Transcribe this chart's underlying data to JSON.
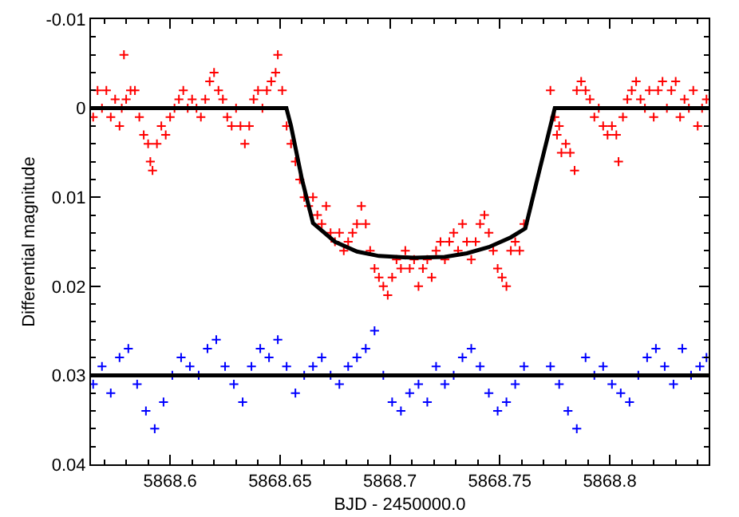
{
  "chart_data": {
    "type": "scatter",
    "xlabel": "BJD - 2450000.0",
    "ylabel": "Differential magnitude",
    "xlim": [
      5868.564,
      5868.845
    ],
    "ylim": [
      0.04,
      -0.01
    ],
    "xticks": [
      5868.6,
      5868.65,
      5868.7,
      5868.75,
      5868.8
    ],
    "yticks": [
      -0.01,
      0,
      0.01,
      0.02,
      0.03,
      0.04
    ],
    "marker": "cross",
    "line_style": "solid",
    "series": [
      {
        "color": "#ff0000",
        "x": [
          5868.565,
          5868.567,
          5868.569,
          5868.571,
          5868.573,
          5868.575,
          5868.577,
          5868.578,
          5868.579,
          5868.58,
          5868.582,
          5868.584,
          5868.586,
          5868.588,
          5868.59,
          5868.591,
          5868.592,
          5868.594,
          5868.596,
          5868.598,
          5868.6,
          5868.602,
          5868.604,
          5868.606,
          5868.608,
          5868.61,
          5868.612,
          5868.614,
          5868.616,
          5868.618,
          5868.62,
          5868.622,
          5868.624,
          5868.626,
          5868.628,
          5868.63,
          5868.632,
          5868.634,
          5868.636,
          5868.638,
          5868.64,
          5868.642,
          5868.644,
          5868.646,
          5868.648,
          5868.649,
          5868.651,
          5868.653,
          5868.655,
          5868.657,
          5868.659,
          5868.661,
          5868.663,
          5868.665,
          5868.667,
          5868.669,
          5868.671,
          5868.673,
          5868.675,
          5868.677,
          5868.679,
          5868.681,
          5868.683,
          5868.685,
          5868.687,
          5868.689,
          5868.691,
          5868.693,
          5868.695,
          5868.697,
          5868.699,
          5868.701,
          5868.703,
          5868.705,
          5868.707,
          5868.709,
          5868.711,
          5868.713,
          5868.715,
          5868.717,
          5868.719,
          5868.721,
          5868.723,
          5868.725,
          5868.727,
          5868.729,
          5868.731,
          5868.733,
          5868.735,
          5868.737,
          5868.739,
          5868.741,
          5868.743,
          5868.745,
          5868.747,
          5868.749,
          5868.751,
          5868.753,
          5868.755,
          5868.757,
          5868.759,
          5868.761,
          5868.773,
          5868.775,
          5868.776,
          5868.777,
          5868.778,
          5868.78,
          5868.782,
          5868.784,
          5868.785,
          5868.787,
          5868.789,
          5868.791,
          5868.793,
          5868.795,
          5868.797,
          5868.799,
          5868.801,
          5868.803,
          5868.804,
          5868.806,
          5868.808,
          5868.81,
          5868.812,
          5868.814,
          5868.816,
          5868.818,
          5868.82,
          5868.822,
          5868.824,
          5868.826,
          5868.828,
          5868.83,
          5868.832,
          5868.834,
          5868.836,
          5868.838,
          5868.84,
          5868.842,
          5868.844
        ],
        "values": [
          0.001,
          -0.002,
          0.0,
          -0.002,
          0.001,
          -0.001,
          0.002,
          0.0,
          -0.006,
          -0.001,
          -0.002,
          -0.002,
          0.001,
          0.003,
          0.004,
          0.006,
          0.007,
          0.004,
          0.002,
          0.003,
          0.001,
          0.0,
          -0.001,
          -0.002,
          0.0,
          -0.001,
          0.0,
          0.001,
          -0.001,
          -0.003,
          -0.004,
          -0.002,
          -0.001,
          0.001,
          0.002,
          0.0,
          0.002,
          0.004,
          0.002,
          -0.001,
          -0.002,
          0.0,
          -0.002,
          -0.003,
          -0.004,
          -0.006,
          -0.002,
          0.002,
          0.004,
          0.006,
          0.008,
          0.01,
          0.011,
          0.01,
          0.012,
          0.013,
          0.011,
          0.014,
          0.015,
          0.014,
          0.016,
          0.015,
          0.014,
          0.013,
          0.011,
          0.013,
          0.016,
          0.018,
          0.019,
          0.02,
          0.021,
          0.019,
          0.017,
          0.018,
          0.016,
          0.018,
          0.017,
          0.02,
          0.018,
          0.017,
          0.019,
          0.016,
          0.015,
          0.017,
          0.015,
          0.014,
          0.016,
          0.013,
          0.015,
          0.017,
          0.015,
          0.013,
          0.012,
          0.014,
          0.016,
          0.018,
          0.019,
          0.02,
          0.016,
          0.015,
          0.016,
          0.013,
          -0.002,
          0.001,
          0.003,
          0.002,
          0.005,
          0.004,
          0.005,
          0.007,
          -0.002,
          -0.003,
          -0.002,
          -0.001,
          0.001,
          0.0,
          0.002,
          0.003,
          0.002,
          0.003,
          0.006,
          0.001,
          -0.001,
          -0.002,
          -0.003,
          -0.001,
          0.0,
          -0.002,
          0.001,
          -0.002,
          -0.003,
          0.0,
          -0.002,
          -0.003,
          0.001,
          -0.001,
          0.0,
          -0.002,
          0.002,
          0.0,
          -0.001
        ]
      },
      {
        "color": "#0000ff",
        "x": [
          5868.565,
          5868.569,
          5868.573,
          5868.577,
          5868.581,
          5868.585,
          5868.589,
          5868.593,
          5868.597,
          5868.601,
          5868.605,
          5868.609,
          5868.613,
          5868.617,
          5868.621,
          5868.625,
          5868.629,
          5868.633,
          5868.637,
          5868.641,
          5868.645,
          5868.649,
          5868.653,
          5868.657,
          5868.661,
          5868.665,
          5868.669,
          5868.673,
          5868.677,
          5868.681,
          5868.685,
          5868.689,
          5868.693,
          5868.697,
          5868.701,
          5868.705,
          5868.709,
          5868.713,
          5868.717,
          5868.721,
          5868.725,
          5868.729,
          5868.733,
          5868.737,
          5868.741,
          5868.745,
          5868.749,
          5868.753,
          5868.757,
          5868.761,
          5868.773,
          5868.777,
          5868.781,
          5868.785,
          5868.789,
          5868.793,
          5868.797,
          5868.801,
          5868.805,
          5868.809,
          5868.813,
          5868.817,
          5868.821,
          5868.825,
          5868.829,
          5868.833,
          5868.837,
          5868.841,
          5868.844
        ],
        "values": [
          0.031,
          0.029,
          0.032,
          0.028,
          0.027,
          0.031,
          0.034,
          0.036,
          0.033,
          0.03,
          0.028,
          0.029,
          0.03,
          0.027,
          0.026,
          0.029,
          0.031,
          0.033,
          0.029,
          0.027,
          0.028,
          0.026,
          0.029,
          0.032,
          0.03,
          0.029,
          0.028,
          0.03,
          0.031,
          0.029,
          0.028,
          0.027,
          0.025,
          0.03,
          0.033,
          0.034,
          0.032,
          0.031,
          0.033,
          0.029,
          0.031,
          0.03,
          0.028,
          0.027,
          0.029,
          0.032,
          0.034,
          0.033,
          0.031,
          0.029,
          0.029,
          0.031,
          0.034,
          0.036,
          0.028,
          0.03,
          0.029,
          0.031,
          0.032,
          0.033,
          0.03,
          0.028,
          0.027,
          0.029,
          0.031,
          0.027,
          0.03,
          0.029,
          0.028
        ]
      },
      {
        "type": "line",
        "marker": "none",
        "color": "#000000",
        "x": [
          5868.564,
          5868.6529,
          5868.655,
          5868.66,
          5868.665,
          5868.675,
          5868.685,
          5868.695,
          5868.711,
          5868.725,
          5868.735,
          5868.745,
          5868.755,
          5868.7616,
          5868.768,
          5868.775,
          5868.845
        ],
        "values": [
          0,
          0,
          0.002,
          0.008,
          0.0129,
          0.015,
          0.0161,
          0.0166,
          0.0168,
          0.0167,
          0.0163,
          0.0156,
          0.0145,
          0.0135,
          0.007,
          0,
          0
        ]
      },
      {
        "type": "line",
        "marker": "none",
        "color": "#000000",
        "x": [
          5868.564,
          5868.845
        ],
        "values": [
          0.03,
          0.03
        ]
      }
    ]
  }
}
